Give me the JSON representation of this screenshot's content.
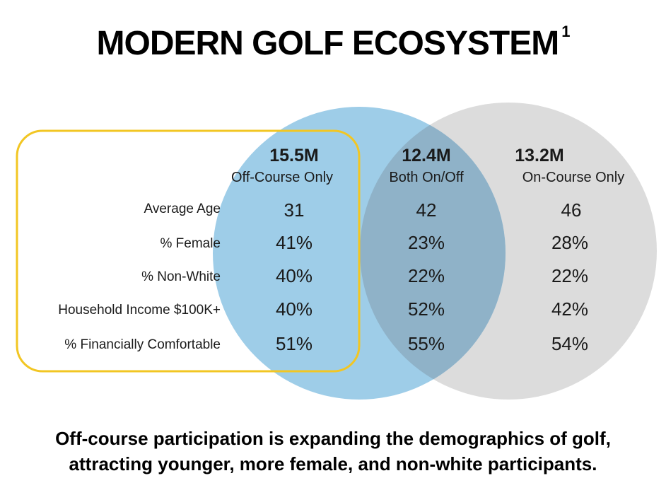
{
  "title": "MODERN GOLF ECOSYSTEM",
  "title_footnote": "1",
  "groups": [
    {
      "value": "15.5M",
      "label": "Off-Course Only"
    },
    {
      "value": "12.4M",
      "label": "Both On/Off"
    },
    {
      "value": "13.2M",
      "label": "On-Course Only"
    }
  ],
  "rows": [
    {
      "label": "Average Age",
      "values": [
        "31",
        "42",
        "46"
      ]
    },
    {
      "label": "% Female",
      "values": [
        "41%",
        "23%",
        "28%"
      ]
    },
    {
      "label": "% Non-White",
      "values": [
        "40%",
        "22%",
        "22%"
      ]
    },
    {
      "label": "Household Income $100K+",
      "values": [
        "40%",
        "52%",
        "42%"
      ]
    },
    {
      "label": "% Financially Comfortable",
      "values": [
        "51%",
        "55%",
        "54%"
      ]
    }
  ],
  "footer": {
    "line1": "Off-course participation is expanding the demographics of golf,",
    "line2": "attracting younger, more female, and non-white participants."
  },
  "colors": {
    "off_course_circle": "#9ecde8",
    "on_course_circle": "#dcdcdc",
    "overlap": "#8fb2c8",
    "highlight_box": "#f2c623"
  }
}
